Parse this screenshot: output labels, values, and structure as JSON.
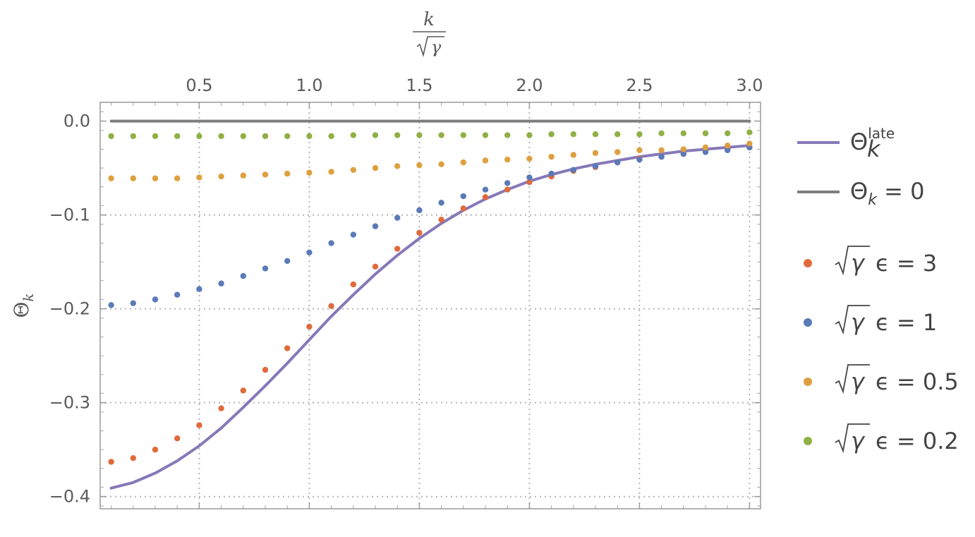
{
  "chart_data": {
    "type": "scatter",
    "xlabel": {
      "numerator": "k",
      "denominator": "γ"
    },
    "ylabel": {
      "symbol": "Θ",
      "subscript": "k"
    },
    "xlim": [
      0.05,
      3.05
    ],
    "ylim": [
      -0.413,
      0.02
    ],
    "x_ticks": [
      0.5,
      1.0,
      1.5,
      2.0,
      2.5,
      3.0
    ],
    "x_tick_labels": [
      "0.5",
      "1.0",
      "1.5",
      "2.0",
      "2.5",
      "3.0"
    ],
    "y_ticks": [
      0.0,
      -0.1,
      -0.2,
      -0.3,
      -0.4
    ],
    "y_tick_labels": [
      "0.0",
      "−0.1",
      "−0.2",
      "−0.3",
      "−0.4"
    ],
    "grid": true,
    "legend_position": "right",
    "lines": [
      {
        "id": "late",
        "legend": {
          "symbol": "Θ",
          "sub": "k",
          "sup": "late"
        },
        "color": "#8678b8",
        "x": [
          0.1,
          0.2,
          0.3,
          0.4,
          0.5,
          0.6,
          0.7,
          0.8,
          0.9,
          1.0,
          1.1,
          1.2,
          1.3,
          1.4,
          1.5,
          1.6,
          1.7,
          1.8,
          1.9,
          2.0,
          2.1,
          2.2,
          2.3,
          2.4,
          2.5,
          2.6,
          2.7,
          2.8,
          2.9,
          3.0
        ],
        "y": [
          -0.391,
          -0.385,
          -0.375,
          -0.362,
          -0.346,
          -0.327,
          -0.305,
          -0.282,
          -0.258,
          -0.233,
          -0.208,
          -0.185,
          -0.163,
          -0.143,
          -0.125,
          -0.109,
          -0.095,
          -0.083,
          -0.073,
          -0.064,
          -0.057,
          -0.051,
          -0.046,
          -0.042,
          -0.038,
          -0.035,
          -0.032,
          -0.03,
          -0.028,
          -0.026
        ]
      },
      {
        "id": "zero",
        "legend": {
          "symbol": "Θ",
          "sub": "k",
          "text": " = 0"
        },
        "color": "#7f7f7f",
        "x": [
          0.1,
          3.0
        ],
        "y": [
          0.0,
          0.0
        ]
      }
    ],
    "series": [
      {
        "legend": {
          "text": "ϵ = 3"
        },
        "color": "#e06a3b",
        "x": [
          0.1,
          0.2,
          0.3,
          0.4,
          0.5,
          0.6,
          0.7,
          0.8,
          0.9,
          1.0,
          1.1,
          1.2,
          1.3,
          1.4,
          1.5,
          1.6,
          1.7,
          1.8,
          1.9,
          2.0,
          2.1,
          2.2,
          2.3,
          2.4,
          2.5,
          2.6,
          2.7,
          2.8,
          2.9,
          3.0
        ],
        "y": [
          -0.363,
          -0.359,
          -0.35,
          -0.338,
          -0.324,
          -0.306,
          -0.287,
          -0.265,
          -0.242,
          -0.219,
          -0.197,
          -0.174,
          -0.155,
          -0.136,
          -0.119,
          -0.105,
          -0.093,
          -0.081,
          -0.073,
          -0.065,
          -0.059,
          -0.053,
          -0.049,
          -0.044,
          -0.04,
          -0.038,
          -0.035,
          -0.032,
          -0.03,
          -0.028
        ]
      },
      {
        "legend": {
          "text": "ϵ = 1"
        },
        "color": "#5a7ab8",
        "x": [
          0.1,
          0.2,
          0.3,
          0.4,
          0.5,
          0.6,
          0.7,
          0.8,
          0.9,
          1.0,
          1.1,
          1.2,
          1.3,
          1.4,
          1.5,
          1.6,
          1.7,
          1.8,
          1.9,
          2.0,
          2.1,
          2.2,
          2.3,
          2.4,
          2.5,
          2.6,
          2.7,
          2.8,
          2.9,
          3.0
        ],
        "y": [
          -0.196,
          -0.194,
          -0.19,
          -0.185,
          -0.179,
          -0.173,
          -0.165,
          -0.157,
          -0.149,
          -0.14,
          -0.13,
          -0.121,
          -0.112,
          -0.103,
          -0.095,
          -0.087,
          -0.08,
          -0.073,
          -0.066,
          -0.06,
          -0.056,
          -0.052,
          -0.048,
          -0.044,
          -0.041,
          -0.038,
          -0.035,
          -0.033,
          -0.031,
          -0.028
        ]
      },
      {
        "legend": {
          "text": "ϵ = 0.5"
        },
        "color": "#dea03f",
        "x": [
          0.1,
          0.2,
          0.3,
          0.4,
          0.5,
          0.6,
          0.7,
          0.8,
          0.9,
          1.0,
          1.1,
          1.2,
          1.3,
          1.4,
          1.5,
          1.6,
          1.7,
          1.8,
          1.9,
          2.0,
          2.1,
          2.2,
          2.3,
          2.4,
          2.5,
          2.6,
          2.7,
          2.8,
          2.9,
          3.0
        ],
        "y": [
          -0.061,
          -0.061,
          -0.061,
          -0.061,
          -0.06,
          -0.059,
          -0.058,
          -0.057,
          -0.056,
          -0.055,
          -0.054,
          -0.052,
          -0.05,
          -0.048,
          -0.047,
          -0.046,
          -0.044,
          -0.042,
          -0.041,
          -0.04,
          -0.038,
          -0.036,
          -0.034,
          -0.033,
          -0.031,
          -0.031,
          -0.03,
          -0.028,
          -0.026,
          -0.024
        ]
      },
      {
        "legend": {
          "text": "ϵ = 0.2"
        },
        "color": "#8fb045",
        "x": [
          0.1,
          0.2,
          0.3,
          0.4,
          0.5,
          0.6,
          0.7,
          0.8,
          0.9,
          1.0,
          1.1,
          1.2,
          1.3,
          1.4,
          1.5,
          1.6,
          1.7,
          1.8,
          1.9,
          2.0,
          2.1,
          2.2,
          2.3,
          2.4,
          2.5,
          2.6,
          2.7,
          2.8,
          2.9,
          3.0
        ],
        "y": [
          -0.016,
          -0.016,
          -0.016,
          -0.016,
          -0.016,
          -0.016,
          -0.016,
          -0.016,
          -0.016,
          -0.016,
          -0.016,
          -0.015,
          -0.015,
          -0.015,
          -0.015,
          -0.015,
          -0.015,
          -0.015,
          -0.015,
          -0.015,
          -0.014,
          -0.014,
          -0.014,
          -0.014,
          -0.014,
          -0.013,
          -0.013,
          -0.013,
          -0.013,
          -0.012
        ]
      }
    ]
  }
}
